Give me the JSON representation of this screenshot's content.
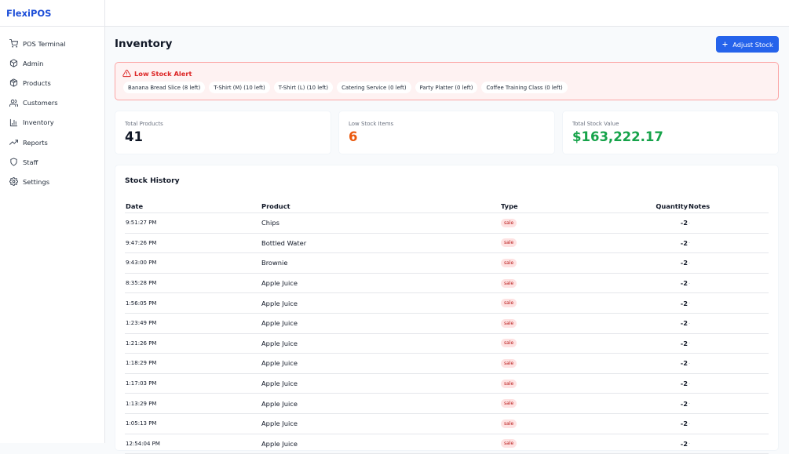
{
  "app": {
    "name": "FlexiPOS"
  },
  "sidebar": {
    "items": [
      {
        "label": "POS Terminal",
        "icon": "cart-icon"
      },
      {
        "label": "Admin",
        "icon": "box-icon"
      },
      {
        "label": "Products",
        "icon": "package-icon"
      },
      {
        "label": "Customers",
        "icon": "users-icon"
      },
      {
        "label": "Inventory",
        "icon": "bar-chart-icon"
      },
      {
        "label": "Reports",
        "icon": "trending-up-icon"
      },
      {
        "label": "Staff",
        "icon": "shield-icon"
      },
      {
        "label": "Settings",
        "icon": "gear-icon"
      }
    ]
  },
  "page": {
    "title": "Inventory",
    "adjust_button": "Adjust Stock"
  },
  "alert": {
    "title": "Low Stock Alert",
    "items": [
      "Banana Bread Slice (8 left)",
      "T-Shirt (M) (10 left)",
      "T-Shirt (L) (10 left)",
      "Catering Service (0 left)",
      "Party Platter (0 left)",
      "Coffee Training Class (0 left)"
    ]
  },
  "stats": {
    "total_products": {
      "label": "Total Products",
      "value": "41"
    },
    "low_stock": {
      "label": "Low Stock Items",
      "value": "6"
    },
    "stock_value": {
      "label": "Total Stock Value",
      "value": "$163,222.17"
    }
  },
  "colors": {
    "primary": "#2563eb",
    "warning": "#ea580c",
    "success": "#16a34a",
    "danger": "#dc2626"
  },
  "history": {
    "title": "Stock History",
    "columns": {
      "date": "Date",
      "product": "Product",
      "type": "Type",
      "quantity": "Quantity",
      "notes": "Notes"
    },
    "rows": [
      {
        "date": "9:51:27 PM",
        "product": "Chips",
        "type": "sale",
        "quantity": "-2",
        "notes": "-"
      },
      {
        "date": "9:47:26 PM",
        "product": "Bottled Water",
        "type": "sale",
        "quantity": "-2",
        "notes": "-"
      },
      {
        "date": "9:43:00 PM",
        "product": "Brownie",
        "type": "sale",
        "quantity": "-2",
        "notes": "-"
      },
      {
        "date": "8:35:28 PM",
        "product": "Apple Juice",
        "type": "sale",
        "quantity": "-2",
        "notes": "-"
      },
      {
        "date": "1:56:05 PM",
        "product": "Apple Juice",
        "type": "sale",
        "quantity": "-2",
        "notes": "-"
      },
      {
        "date": "1:23:49 PM",
        "product": "Apple Juice",
        "type": "sale",
        "quantity": "-2",
        "notes": "-"
      },
      {
        "date": "1:21:26 PM",
        "product": "Apple Juice",
        "type": "sale",
        "quantity": "-2",
        "notes": "-"
      },
      {
        "date": "1:18:29 PM",
        "product": "Apple Juice",
        "type": "sale",
        "quantity": "-2",
        "notes": "-"
      },
      {
        "date": "1:17:03 PM",
        "product": "Apple Juice",
        "type": "sale",
        "quantity": "-2",
        "notes": "-"
      },
      {
        "date": "1:13:29 PM",
        "product": "Apple Juice",
        "type": "sale",
        "quantity": "-2",
        "notes": "-"
      },
      {
        "date": "1:05:13 PM",
        "product": "Apple Juice",
        "type": "sale",
        "quantity": "-2",
        "notes": "-"
      },
      {
        "date": "12:54:04 PM",
        "product": "Apple Juice",
        "type": "sale",
        "quantity": "-2",
        "notes": "-"
      }
    ]
  }
}
